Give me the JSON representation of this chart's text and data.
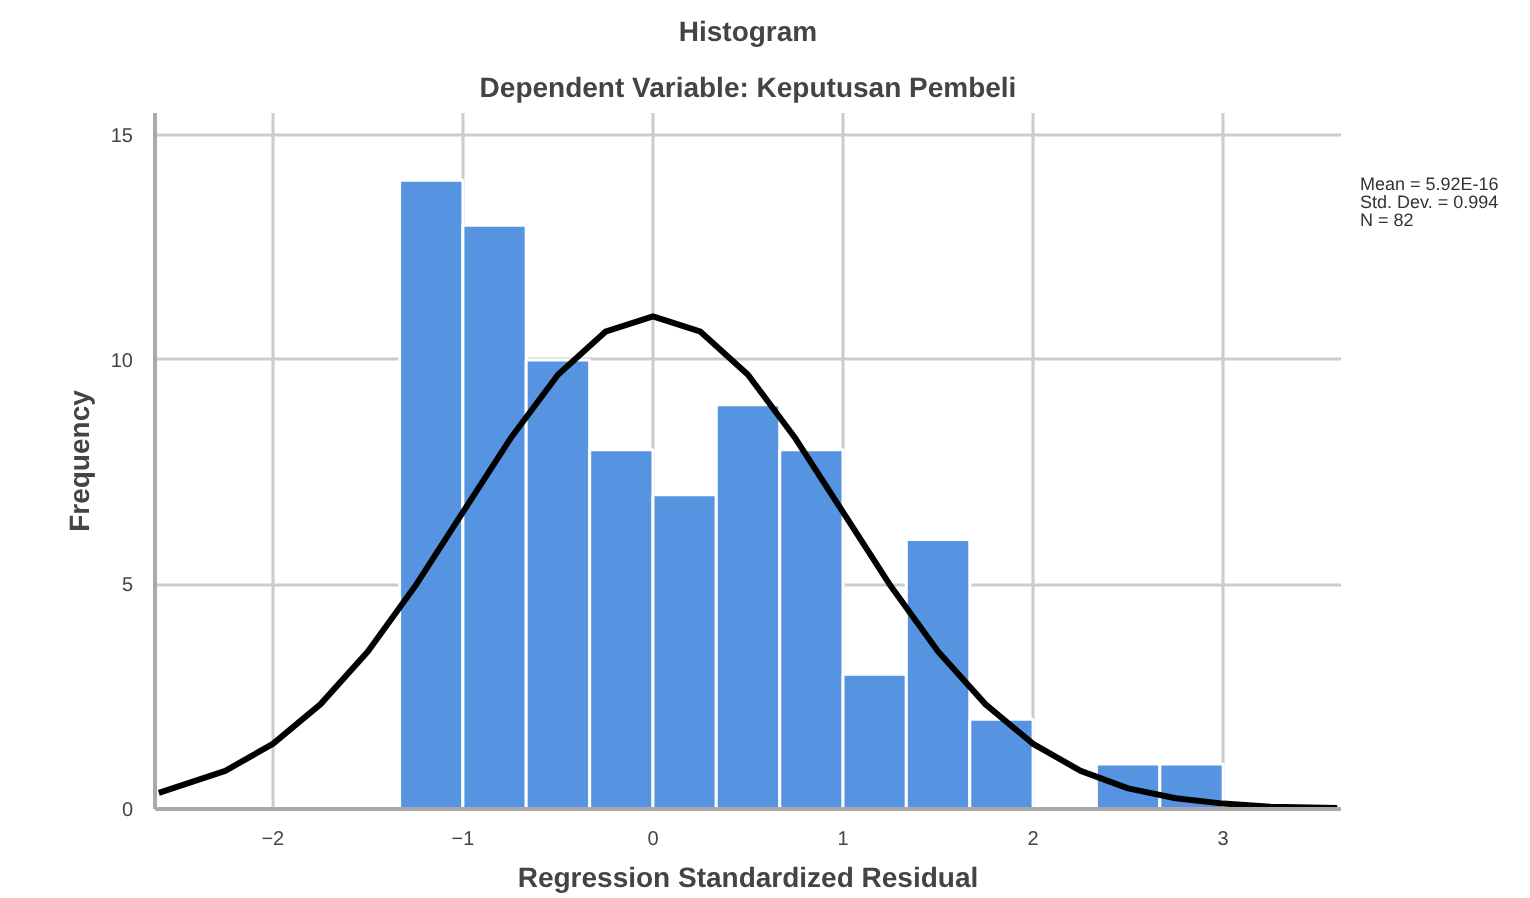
{
  "chart_data": {
    "type": "histogram",
    "title": "Histogram",
    "subtitle": "Dependent Variable: Keputusan Pembeli",
    "xlabel": "Regression Standardized Residual",
    "ylabel": "Frequency",
    "bins": [
      -1.333,
      -1.0,
      -0.667,
      -0.333,
      0.0,
      0.333,
      0.667,
      1.0,
      1.333,
      1.667,
      2.0,
      2.333,
      2.667,
      3.0
    ],
    "series": [
      {
        "color": "#5694e2",
        "values": [
          14,
          13,
          10,
          8,
          7,
          9,
          8,
          3,
          6,
          2,
          0,
          1,
          1
        ]
      },
      {
        "type": "line",
        "color": "#000000",
        "x": [
          -2.6,
          -2.25,
          -2.0,
          -1.75,
          -1.5,
          -1.25,
          -1.0,
          -0.75,
          -0.5,
          -0.25,
          0.0,
          0.25,
          0.5,
          0.75,
          1.0,
          1.25,
          1.5,
          1.75,
          2.0,
          2.25,
          2.5,
          2.75,
          3.0,
          3.25,
          3.6
        ],
        "values": [
          0.36,
          0.85,
          1.45,
          2.33,
          3.51,
          4.97,
          6.61,
          8.25,
          9.67,
          10.63,
          10.97,
          10.63,
          9.67,
          8.25,
          6.61,
          4.97,
          3.51,
          2.33,
          1.45,
          0.85,
          0.46,
          0.24,
          0.12,
          0.05,
          0.02
        ]
      }
    ],
    "annotations": [
      "Mean = 5.92E-16",
      "Std. Dev. = 0.994",
      "N = 82"
    ],
    "xlim": [
      -2.62,
      3.62
    ],
    "ylim": [
      0,
      15.5
    ],
    "xticks": [
      -2,
      -1,
      0,
      1,
      2,
      3
    ],
    "yticks": [
      0,
      5,
      10,
      15
    ],
    "grid": true
  }
}
